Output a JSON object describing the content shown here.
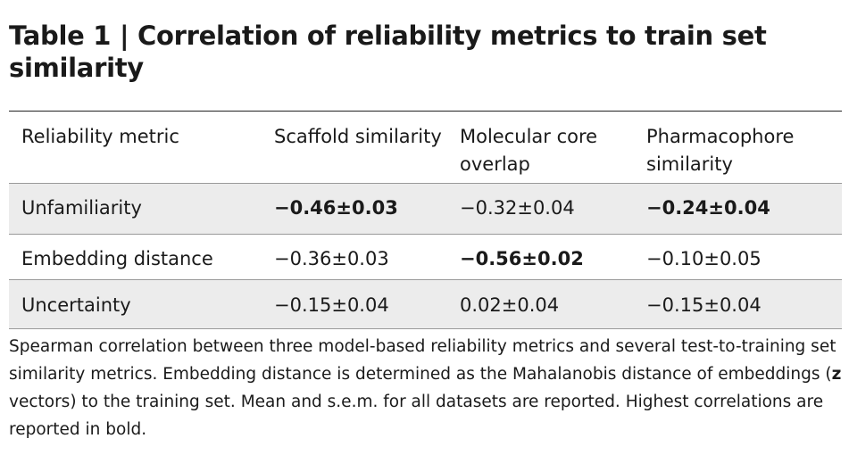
{
  "title": "Table 1 | Correlation of reliability metrics to train set similarity",
  "table": {
    "header": [
      "Reliability metric",
      "Scaffold similarity",
      "Molecular core overlap",
      "Pharmacophore similarity"
    ],
    "rows": [
      [
        {
          "text": "Unfamiliarity",
          "bold": false
        },
        {
          "text": "−0.46±0.03",
          "bold": true
        },
        {
          "text": "−0.32±0.04",
          "bold": false
        },
        {
          "text": "−0.24±0.04",
          "bold": true
        }
      ],
      [
        {
          "text": "Embedding distance",
          "bold": false
        },
        {
          "text": "−0.36±0.03",
          "bold": false
        },
        {
          "text": "−0.56±0.02",
          "bold": true
        },
        {
          "text": "−0.10±0.05",
          "bold": false
        }
      ],
      [
        {
          "text": "Uncertainty",
          "bold": false
        },
        {
          "text": "−0.15±0.04",
          "bold": false
        },
        {
          "text": "0.02±0.04",
          "bold": false
        },
        {
          "text": "−0.15±0.04",
          "bold": false
        }
      ]
    ]
  },
  "caption": [
    {
      "text": "Spearman correlation between three model-based reliability metrics and several test-to-training set similarity metrics. Embedding distance is determined as the Mahalanobis distance of embeddings (",
      "bold": false
    },
    {
      "text": "z",
      "bold": true
    },
    {
      "text": " vectors) to the training set. Mean and s.e.m. for all datasets are reported. Highest correlations are reported in bold.",
      "bold": false
    }
  ]
}
